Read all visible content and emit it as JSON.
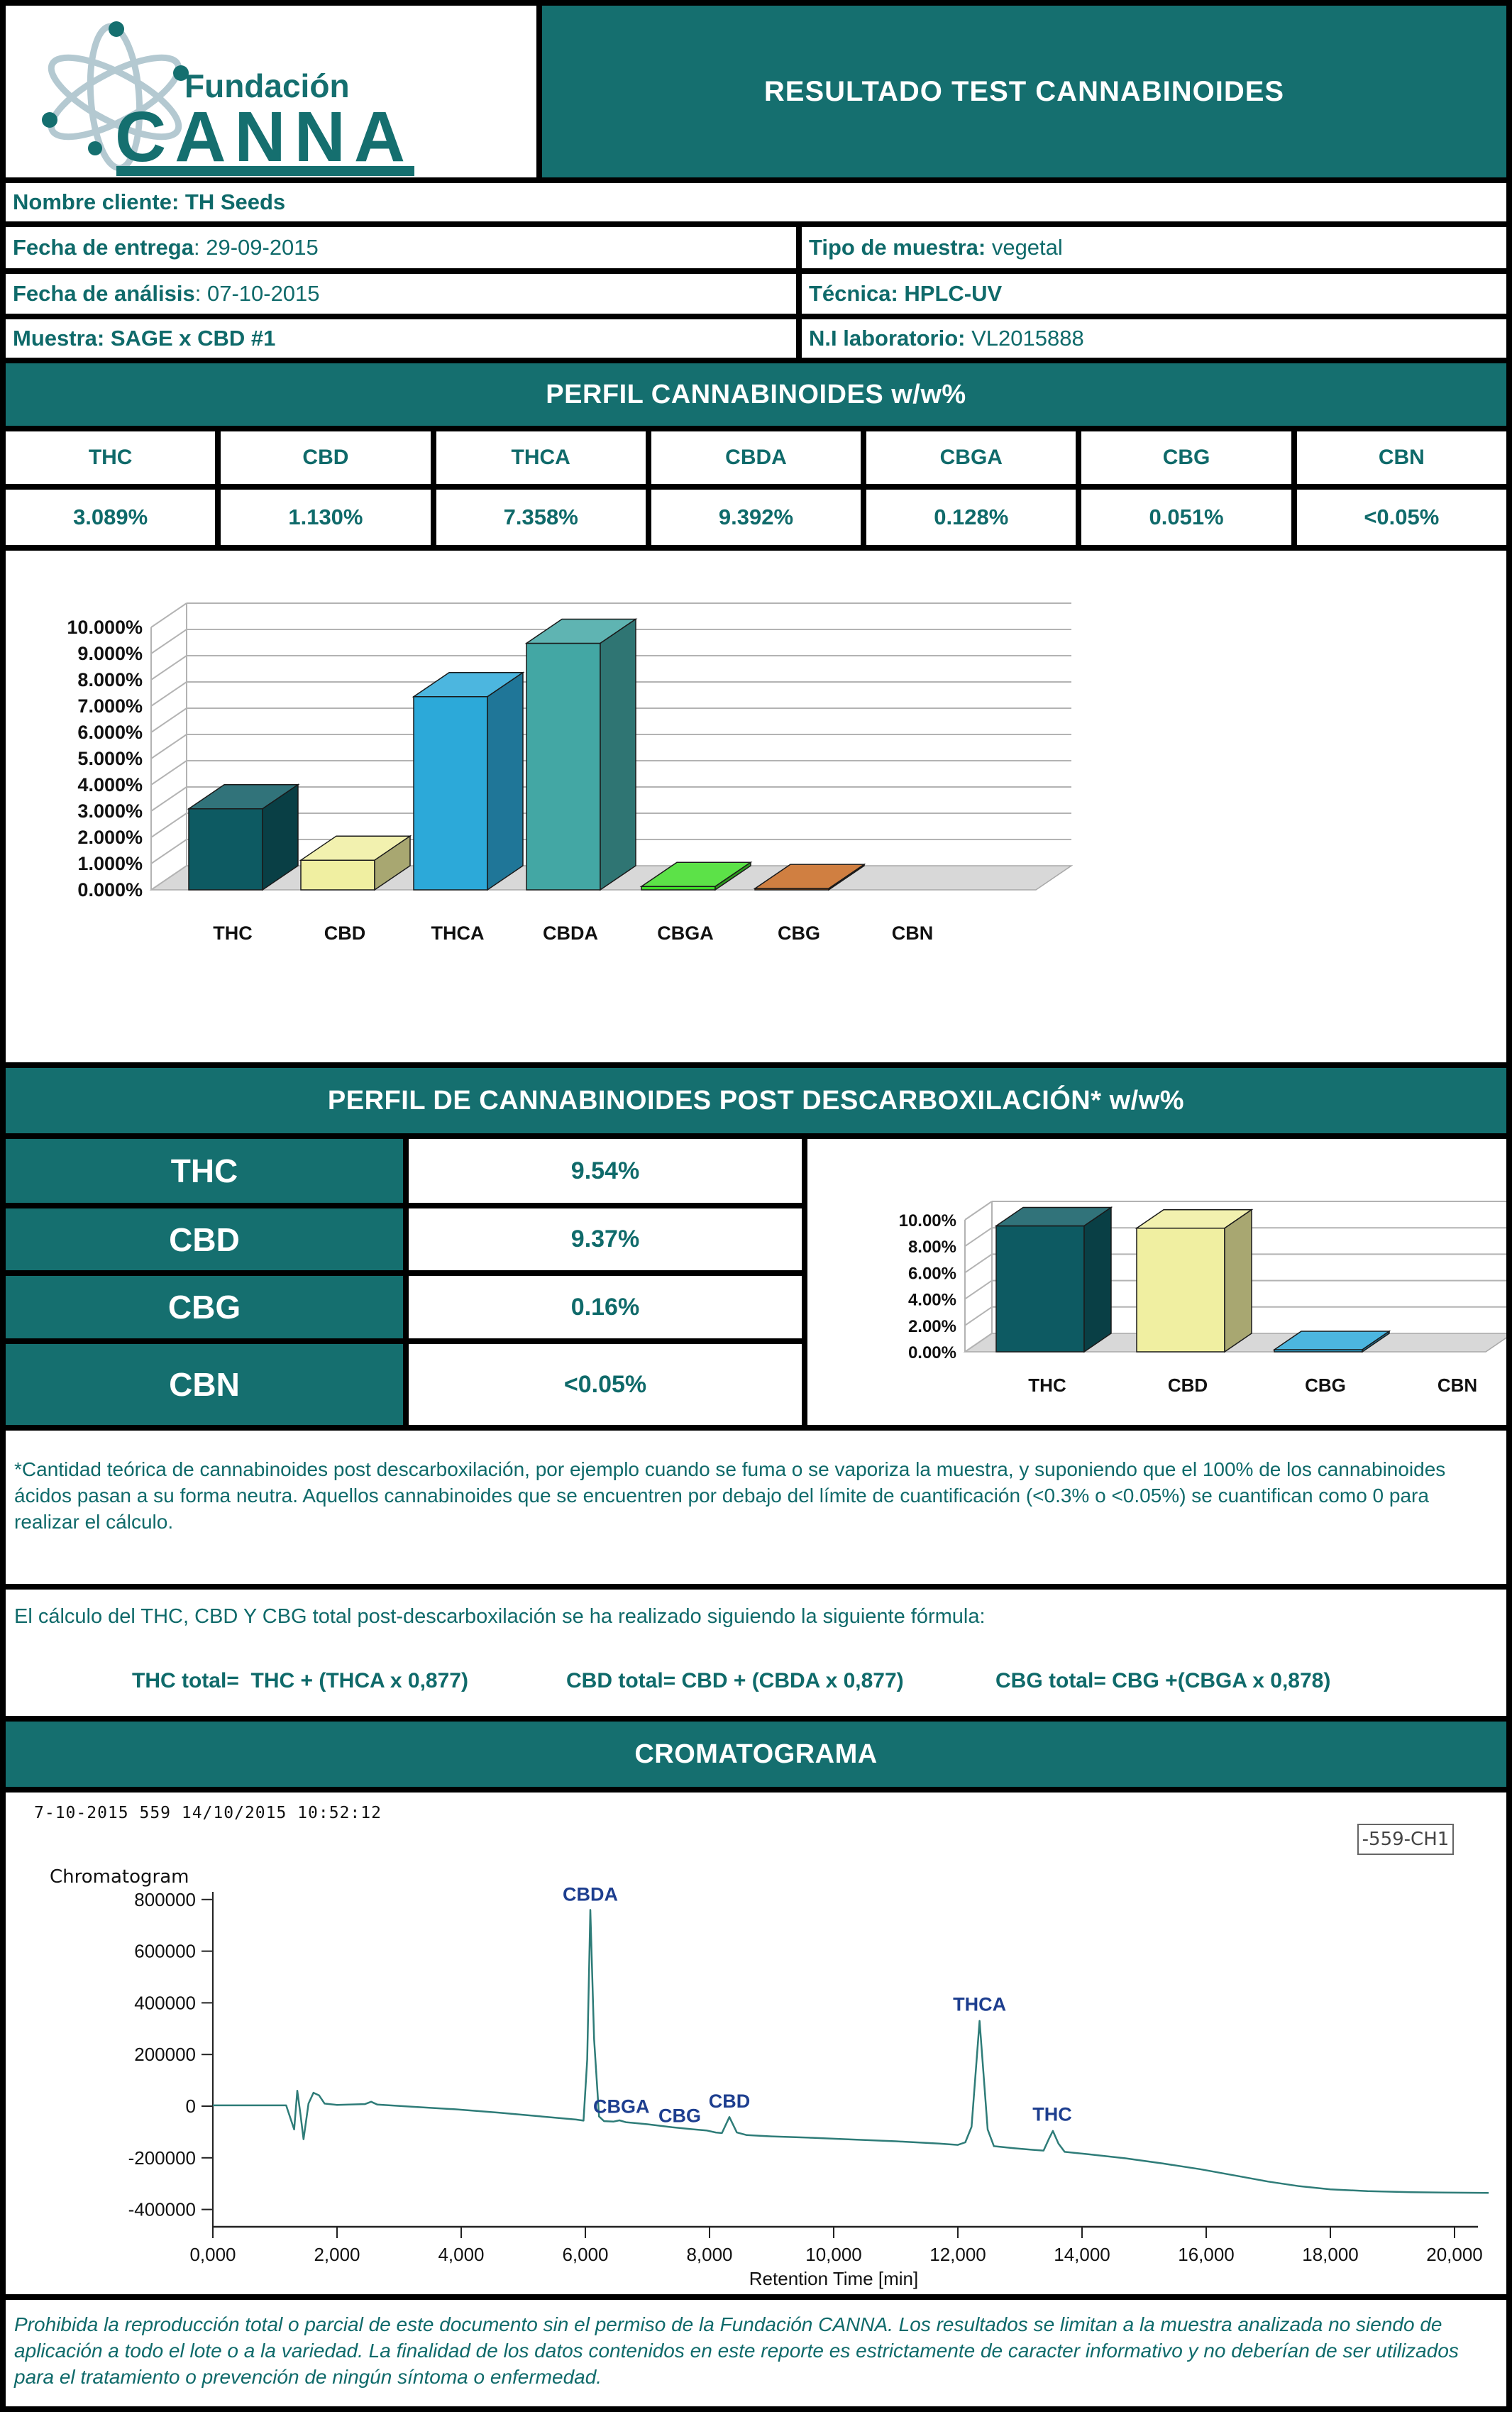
{
  "colors": {
    "accent_teal": "#156f6f",
    "text_teal": "#0f6a6a",
    "peak_label_navy": "#1d3e8f",
    "curve_teal": "#2e7c78",
    "chart_floor_grey": "#d8d8d8",
    "border_black": "#000000"
  },
  "header": {
    "title": "RESULTADO TEST CANNABINOIDES",
    "logo_top": "Fundación",
    "logo_main": "CANNA"
  },
  "info": {
    "nombre": {
      "label": "Nombre cliente:",
      "value": " TH Seeds"
    },
    "entrega": {
      "label": "Fecha de entrega",
      "value": ": 29-09-2015"
    },
    "tipo": {
      "label": "Tipo de muestra:",
      "value": " vegetal"
    },
    "analisis": {
      "label": "Fecha de análisis",
      "value": ": 07-10-2015"
    },
    "tecnica": {
      "label": "Técnica:",
      "value": " HPLC-UV"
    },
    "muestra": {
      "label": "Muestra:",
      "value": " SAGE x CBD #1"
    },
    "laboratorio": {
      "label": "N.I laboratorio:",
      "value": " VL2015888"
    }
  },
  "perfil": {
    "title": "PERFIL CANNABINOIDES w/w%",
    "columns": [
      "THC",
      "CBD",
      "THCA",
      "CBDA",
      "CBGA",
      "CBG",
      "CBN"
    ],
    "values": [
      "3.089%",
      "1.130%",
      "7.358%",
      "9.392%",
      "0.128%",
      "0.051%",
      "<0.05%"
    ]
  },
  "post": {
    "title": "PERFIL DE CANNABINOIDES POST DESCARBOXILACIÓN* w/w%",
    "rows": [
      {
        "label": "THC",
        "value": "9.54%"
      },
      {
        "label": "CBD",
        "value": "9.37%"
      },
      {
        "label": "CBG",
        "value": "0.16%"
      },
      {
        "label": "CBN",
        "value": "<0.05%"
      }
    ]
  },
  "footnote": "*Cantidad teórica de cannabinoides post descarboxilación, por ejemplo cuando se fuma o se vaporiza la muestra, y suponiendo que el 100% de los cannabinoides ácidos pasan a su forma neutra. Aquellos cannabinoides que se encuentren por debajo del límite de cuantificación (<0.3% o <0.05%) se cuantifican como 0 para realizar el cálculo.",
  "formula": {
    "intro": "El cálculo del THC, CBD Y CBG total post-descarboxilación se ha realizado siguiendo la siguiente fórmula:",
    "items": [
      "THC total=  THC + (THCA x 0,877)",
      "CBD total= CBD + (CBDA x 0,877)",
      "CBG total= CBG +(CBGA x 0,878)"
    ]
  },
  "croma": {
    "title": "CROMATOGRAMA",
    "stamp": "7-10-2015 559 14/10/2015 10:52:12",
    "plot_label": "Chromatogram",
    "legend": "-559-CH1",
    "xlabel": "Retention Time [min]"
  },
  "footer": "Prohibida la reproducción total o parcial de este documento sin el permiso de la Fundación CANNA.  Los resultados se limitan a la muestra analizada no siendo de aplicación a todo el lote o a la variedad. La finalidad de los datos contenidos en este reporte es estrictamente de caracter informativo y no deberían de ser utilizados para el tratamiento o prevención de ningún síntoma o enfermedad.",
  "chart_data": [
    {
      "name": "perfil_cannabinoides",
      "type": "bar",
      "title": "PERFIL CANNABINOIDES w/w%",
      "categories": [
        "THC",
        "CBD",
        "THCA",
        "CBDA",
        "CBGA",
        "CBG",
        "CBN"
      ],
      "values": [
        3.089,
        1.13,
        7.358,
        9.392,
        0.128,
        0.051,
        0
      ],
      "bar_colors": [
        "#0d5a62",
        "#f0efa1",
        "#2ca9d9",
        "#43a7a4",
        "#3fdd28",
        "#c8681f",
        "#888888"
      ],
      "ylim": [
        0,
        10
      ],
      "ytick_values": [
        0,
        1,
        2,
        3,
        4,
        5,
        6,
        7,
        8,
        9,
        10
      ],
      "ytick_labels": [
        "0.000%",
        "1.000%",
        "2.000%",
        "3.000%",
        "4.000%",
        "5.000%",
        "6.000%",
        "7.000%",
        "8.000%",
        "9.000%",
        "10.000%"
      ],
      "grid": true,
      "style": "3d"
    },
    {
      "name": "post_descarboxilacion",
      "type": "bar",
      "title": "PERFIL DE CANNABINOIDES POST DESCARBOXILACIÓN* w/w%",
      "categories": [
        "THC",
        "CBD",
        "CBG",
        "CBN"
      ],
      "values": [
        9.54,
        9.37,
        0.16,
        0
      ],
      "bar_colors": [
        "#0d5a62",
        "#f0efa1",
        "#2ca9d9",
        "#888888"
      ],
      "ylim": [
        0,
        10
      ],
      "ytick_values": [
        0,
        2,
        4,
        6,
        8,
        10
      ],
      "ytick_labels": [
        "0.00%",
        "2.00%",
        "4.00%",
        "6.00%",
        "8.00%",
        "10.00%"
      ],
      "grid": true,
      "style": "3d"
    },
    {
      "name": "chromatogram",
      "type": "line",
      "title": "Chromatogram",
      "legend": "-559-CH1",
      "xlabel": "Retention Time [min]",
      "color": "#2e7c78",
      "ylim": [
        -400000,
        800000
      ],
      "xlim": [
        0,
        20.9
      ],
      "ytick_values": [
        800000,
        600000,
        400000,
        200000,
        0,
        -200000,
        -400000
      ],
      "ytick_labels": [
        "800000",
        "600000",
        "400000",
        "200000",
        "0",
        "-200000",
        "-400000"
      ],
      "xtick_values": [
        0,
        2,
        4,
        6,
        8,
        10,
        12,
        14,
        16,
        18,
        20
      ],
      "xtick_labels": [
        "0,000",
        "2,000",
        "4,000",
        "6,000",
        "8,000",
        "10,000",
        "12,000",
        "14,000",
        "16,000",
        "18,000",
        "20,000"
      ],
      "points": [
        [
          0,
          3000
        ],
        [
          1.18,
          3000
        ],
        [
          1.26,
          -55000
        ],
        [
          1.31,
          -90000
        ],
        [
          1.36,
          60000
        ],
        [
          1.41,
          -30000
        ],
        [
          1.46,
          -128000
        ],
        [
          1.54,
          10000
        ],
        [
          1.62,
          52000
        ],
        [
          1.71,
          42000
        ],
        [
          1.8,
          10000
        ],
        [
          2.0,
          5000
        ],
        [
          2.45,
          8000
        ],
        [
          2.55,
          17000
        ],
        [
          2.65,
          6000
        ],
        [
          3.2,
          -2000
        ],
        [
          3.9,
          -12000
        ],
        [
          4.6,
          -25000
        ],
        [
          5.3,
          -40000
        ],
        [
          5.85,
          -52000
        ],
        [
          5.97,
          -56000
        ],
        [
          6.03,
          180000
        ],
        [
          6.08,
          760000
        ],
        [
          6.14,
          260000
        ],
        [
          6.22,
          -40000
        ],
        [
          6.3,
          -58000
        ],
        [
          6.45,
          -60000
        ],
        [
          6.55,
          -55000
        ],
        [
          6.65,
          -62000
        ],
        [
          7.0,
          -70000
        ],
        [
          7.4,
          -82000
        ],
        [
          7.75,
          -90000
        ],
        [
          7.95,
          -94000
        ],
        [
          8.1,
          -102000
        ],
        [
          8.2,
          -104000
        ],
        [
          8.32,
          -42000
        ],
        [
          8.44,
          -102000
        ],
        [
          8.6,
          -112000
        ],
        [
          9.0,
          -117000
        ],
        [
          9.6,
          -122000
        ],
        [
          10.2,
          -128000
        ],
        [
          11.0,
          -136000
        ],
        [
          11.7,
          -145000
        ],
        [
          12.0,
          -150000
        ],
        [
          12.12,
          -140000
        ],
        [
          12.22,
          -80000
        ],
        [
          12.35,
          330000
        ],
        [
          12.48,
          -90000
        ],
        [
          12.58,
          -155000
        ],
        [
          12.9,
          -163000
        ],
        [
          13.2,
          -169000
        ],
        [
          13.38,
          -172000
        ],
        [
          13.47,
          -125000
        ],
        [
          13.53,
          -96000
        ],
        [
          13.62,
          -145000
        ],
        [
          13.72,
          -177000
        ],
        [
          14.1,
          -186000
        ],
        [
          14.7,
          -202000
        ],
        [
          15.3,
          -222000
        ],
        [
          15.9,
          -244000
        ],
        [
          16.5,
          -270000
        ],
        [
          17.0,
          -292000
        ],
        [
          17.5,
          -310000
        ],
        [
          18.0,
          -322000
        ],
        [
          18.6,
          -329000
        ],
        [
          19.3,
          -333000
        ],
        [
          20.0,
          -335000
        ],
        [
          20.55,
          -336000
        ]
      ],
      "annotations": [
        {
          "text": "CBDA",
          "t": 6.08,
          "v": 795000
        },
        {
          "text": "CBGA",
          "t": 6.58,
          "v": -26000
        },
        {
          "text": "CBG",
          "t": 7.52,
          "v": -62000
        },
        {
          "text": "CBD",
          "t": 8.32,
          "v": -6000
        },
        {
          "text": "THCA",
          "t": 12.35,
          "v": 370000
        },
        {
          "text": "THC",
          "t": 13.52,
          "v": -56000
        }
      ]
    }
  ]
}
